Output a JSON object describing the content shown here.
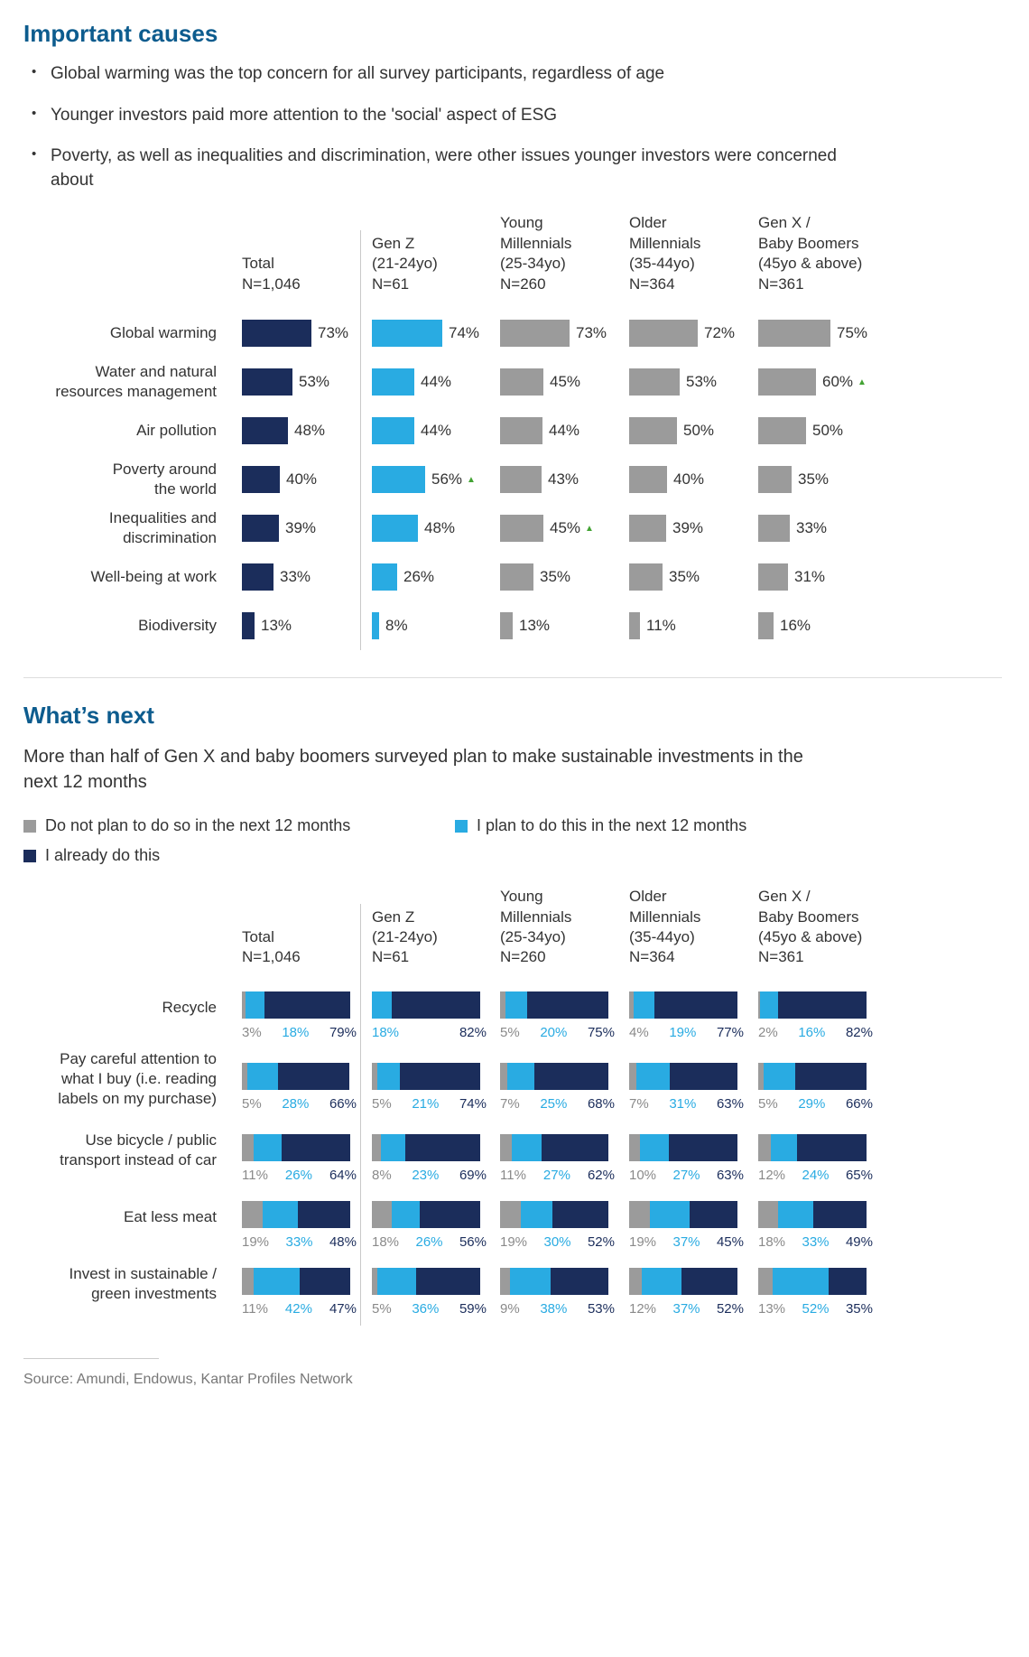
{
  "colors": {
    "heading": "#0d5c8e",
    "navy": "#1b2d5b",
    "blue": "#29abe2",
    "gray": "#9b9b9b",
    "gray_text": "#8a8a8a",
    "green": "#43a334",
    "text": "#333333"
  },
  "icons": {
    "up_arrow": "▲"
  },
  "columns": {
    "headers": [
      "Total\nN=1,046",
      "Gen Z\n(21-24yo)\nN=61",
      "Young\nMillennials\n(25-34yo)\nN=260",
      "Older\nMillennials\n(35-44yo)\nN=364",
      "Gen X /\nBaby Boomers\n(45yo & above)\nN=361"
    ]
  },
  "section1": {
    "title": "Important causes",
    "bullets": [
      "Global warming was the top concern for all survey participants, regardless of age",
      "Younger investors paid more attention to the 'social' aspect of ESG",
      "Poverty, as well as inequalities and discrimination, were other issues younger investors were concerned about"
    ]
  },
  "section2": {
    "title": "What’s next",
    "subtitle": "More than half of Gen X and baby boomers surveyed plan to make sustainable investments in the next 12 months",
    "legend": [
      {
        "label": "Do not plan to do so in the next 12 months",
        "color_key": "gray"
      },
      {
        "label": "I plan to do this in the next 12 months",
        "color_key": "blue"
      },
      {
        "label": "I already do this",
        "color_key": "navy"
      }
    ]
  },
  "source": "Source: Amundi, Endowus, Kantar Profiles Network",
  "chart_data": [
    {
      "type": "bar",
      "orientation": "horizontal",
      "title": "Important causes",
      "unit": "%",
      "xlim": [
        0,
        100
      ],
      "groups": [
        "Total N=1,046",
        "Gen Z (21-24yo) N=61",
        "Young Millennials (25-34yo) N=260",
        "Older Millennials (35-44yo) N=364",
        "Gen X / Baby Boomers (45yo & above) N=361"
      ],
      "rows": [
        {
          "label": "Global warming",
          "values": [
            73,
            74,
            73,
            72,
            75
          ]
        },
        {
          "label": "Water and natural\nresources management",
          "values": [
            53,
            44,
            45,
            53,
            60
          ],
          "arrows": [
            4
          ]
        },
        {
          "label": "Air pollution",
          "values": [
            48,
            44,
            44,
            50,
            50
          ]
        },
        {
          "label": "Poverty around\nthe world",
          "values": [
            40,
            56,
            43,
            40,
            35
          ],
          "arrows": [
            1
          ]
        },
        {
          "label": "Inequalities and\ndiscrimination",
          "values": [
            39,
            48,
            45,
            39,
            33
          ],
          "arrows": [
            2
          ]
        },
        {
          "label": "Well-being at work",
          "values": [
            33,
            26,
            35,
            35,
            31
          ]
        },
        {
          "label": "Biodiversity",
          "values": [
            13,
            8,
            13,
            11,
            16
          ]
        }
      ],
      "annotations": "green up-arrow marks notably higher values: Gen X/Baby Boomers 60% water management, Gen Z 56% poverty, Young Millennials 45% inequalities"
    },
    {
      "type": "bar",
      "subtype": "stacked-horizontal-100pct",
      "title": "What’s next",
      "unit": "%",
      "segments": [
        "Do not plan to do so in the next 12 months",
        "I plan to do this in the next 12 months",
        "I already do this"
      ],
      "groups": [
        "Total N=1,046",
        "Gen Z (21-24yo) N=61",
        "Young Millennials (25-34yo) N=260",
        "Older Millennials (35-44yo) N=364",
        "Gen X / Baby Boomers (45yo & above) N=361"
      ],
      "rows": [
        {
          "label": "Recycle",
          "values": [
            [
              3,
              18,
              79
            ],
            [
              0,
              18,
              82
            ],
            [
              5,
              20,
              75
            ],
            [
              4,
              19,
              77
            ],
            [
              2,
              16,
              82
            ]
          ]
        },
        {
          "label": "Pay careful attention to\nwhat I buy (i.e. reading\nlabels on my purchase)",
          "values": [
            [
              5,
              28,
              66
            ],
            [
              5,
              21,
              74
            ],
            [
              7,
              25,
              68
            ],
            [
              7,
              31,
              63
            ],
            [
              5,
              29,
              66
            ]
          ]
        },
        {
          "label": "Use bicycle / public\ntransport instead of car",
          "values": [
            [
              11,
              26,
              64
            ],
            [
              8,
              23,
              69
            ],
            [
              11,
              27,
              62
            ],
            [
              10,
              27,
              63
            ],
            [
              12,
              24,
              65
            ]
          ]
        },
        {
          "label": "Eat less meat",
          "values": [
            [
              19,
              33,
              48
            ],
            [
              18,
              26,
              56
            ],
            [
              19,
              30,
              52
            ],
            [
              19,
              37,
              45
            ],
            [
              18,
              33,
              49
            ]
          ]
        },
        {
          "label": "Invest in sustainable /\ngreen investments",
          "values": [
            [
              11,
              42,
              47
            ],
            [
              5,
              36,
              59
            ],
            [
              9,
              38,
              53
            ],
            [
              12,
              37,
              52
            ],
            [
              13,
              52,
              35
            ]
          ]
        }
      ]
    }
  ]
}
